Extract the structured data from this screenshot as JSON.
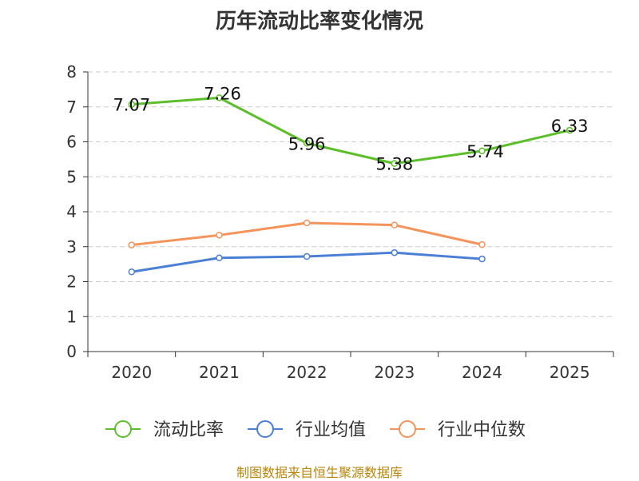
{
  "chart_data": {
    "type": "line",
    "title": "历年流动比率变化情况",
    "categories": [
      "2020",
      "2021",
      "2022",
      "2023",
      "2024",
      "2025"
    ],
    "ylim": [
      0,
      8
    ],
    "yticks": [
      0,
      1,
      2,
      3,
      4,
      5,
      6,
      7,
      8
    ],
    "grid": true,
    "legend_position": "bottom",
    "series": [
      {
        "name": "流动比率",
        "color": "#5cbf2a",
        "values": [
          7.07,
          7.26,
          5.96,
          5.38,
          5.74,
          6.33
        ],
        "labels": [
          "7.07",
          "7.26",
          "5.96",
          "5.38",
          "5.74",
          "6.33"
        ]
      },
      {
        "name": "行业均值",
        "color": "#4a7fd6",
        "values": [
          2.28,
          2.68,
          2.72,
          2.83,
          2.65,
          null
        ]
      },
      {
        "name": "行业中位数",
        "color": "#f4935a",
        "values": [
          3.05,
          3.33,
          3.68,
          3.62,
          3.06,
          null
        ]
      }
    ]
  },
  "source_note": "制图数据来自恒生聚源数据库"
}
